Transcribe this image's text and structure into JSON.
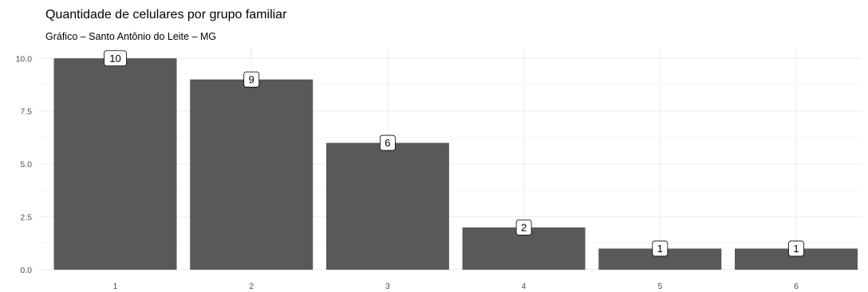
{
  "chart_data": {
    "type": "bar",
    "title": "Quantidade de celulares por grupo familiar",
    "subtitle": "Gráfico – Santo Antônio do Leite – MG",
    "xlabel": "",
    "ylabel": "",
    "categories": [
      "1",
      "2",
      "3",
      "4",
      "5",
      "6"
    ],
    "values": [
      10,
      9,
      6,
      2,
      1,
      1
    ],
    "data_labels": [
      "10",
      "9",
      "6",
      "2",
      "1",
      "1"
    ],
    "y_ticks": [
      "0.0",
      "2.5",
      "5.0",
      "7.5",
      "10.0"
    ],
    "y_tick_values": [
      0,
      2.5,
      5,
      7.5,
      10
    ],
    "ylim": [
      0,
      10.5
    ],
    "grid": true,
    "legend": "none",
    "colors": {
      "bar": "#595959",
      "grid_major": "#ebebeb",
      "grid_minor": "#f4f4f4",
      "background": "#ffffff",
      "label_box": "#ffffff",
      "label_border": "#000000"
    }
  }
}
